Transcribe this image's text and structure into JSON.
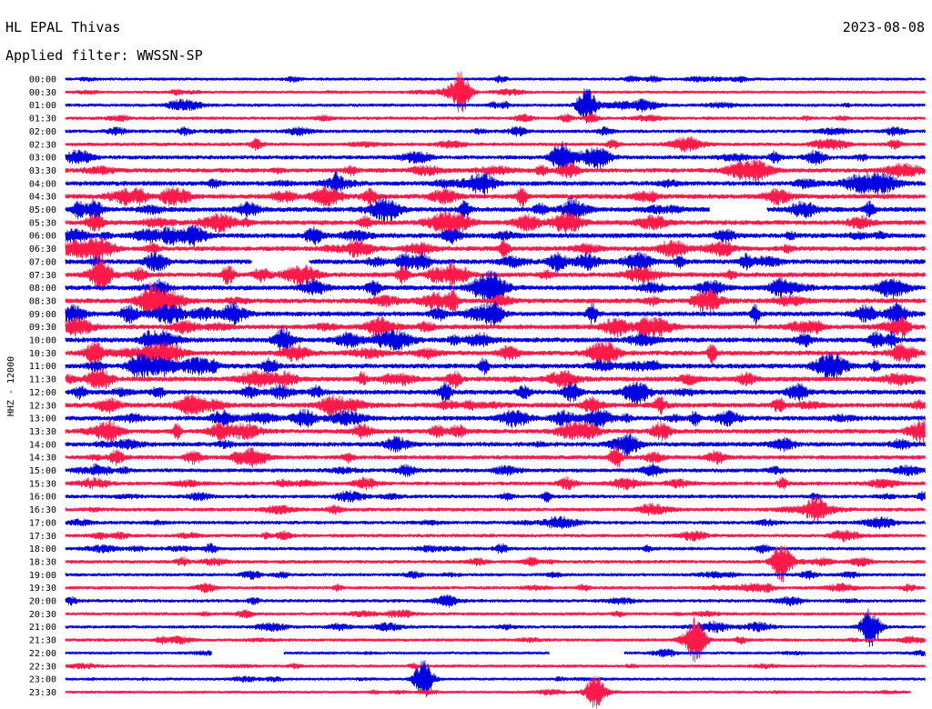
{
  "header": {
    "station": "HL EPAL Thivas",
    "date": "2023-08-08",
    "filter": "Applied filter: WWSSN-SP",
    "channel": "HHZ - 12000"
  },
  "chart_data": {
    "type": "line",
    "title": "HL EPAL Thivas",
    "xlabel": "",
    "ylabel": "HHZ - 12000",
    "x_unit": "minutes",
    "x_range": [
      0,
      30
    ],
    "rows": [
      "00:00",
      "00:30",
      "01:00",
      "01:30",
      "02:00",
      "02:30",
      "03:00",
      "03:30",
      "04:00",
      "04:30",
      "05:00",
      "05:30",
      "06:00",
      "06:30",
      "07:00",
      "07:30",
      "08:00",
      "08:30",
      "09:00",
      "09:30",
      "10:00",
      "10:30",
      "11:00",
      "11:30",
      "12:00",
      "12:30",
      "13:00",
      "13:30",
      "14:00",
      "14:30",
      "15:00",
      "15:30",
      "16:00",
      "16:30",
      "17:00",
      "17:30",
      "18:00",
      "18:30",
      "19:00",
      "19:30",
      "20:00",
      "20:30",
      "21:00",
      "21:30",
      "22:00",
      "22:30",
      "23:00",
      "23:30"
    ],
    "series_colors": [
      "#0000e0",
      "#ff1a4a"
    ],
    "color_pattern": "alternating per row, starting blue",
    "amplitude_levels": [
      0.35,
      0.3,
      0.45,
      0.45,
      0.5,
      0.55,
      0.7,
      0.85,
      0.95,
      1,
      1,
      1,
      1,
      1,
      1,
      1,
      1,
      1,
      1,
      1,
      1,
      1,
      1,
      1,
      1,
      1,
      0.95,
      0.9,
      0.9,
      0.8,
      0.7,
      0.65,
      0.6,
      0.6,
      0.55,
      0.5,
      0.5,
      0.5,
      0.45,
      0.45,
      0.45,
      0.4,
      0.4,
      0.4,
      0.3,
      0.3,
      0.25,
      0.25
    ],
    "gaps": [
      {
        "row": "07:00",
        "from_min": 6.5,
        "to_min": 8.5
      },
      {
        "row": "05:00",
        "from_min": 22.5,
        "to_min": 24.5
      },
      {
        "row": "22:00",
        "from_min": 5.1,
        "to_min": 7.6
      },
      {
        "row": "22:00",
        "from_min": 16.9,
        "to_min": 19.5
      },
      {
        "row": "23:30",
        "from_min": 29.5,
        "to_min": 30
      }
    ],
    "events": [
      {
        "row": "00:30",
        "minute": 13.8,
        "amp": 1.6
      },
      {
        "row": "01:00",
        "minute": 18.2,
        "amp": 1.3
      },
      {
        "row": "03:00",
        "minute": 17.3,
        "amp": 1.2
      },
      {
        "row": "18:30",
        "minute": 25.0,
        "amp": 1.5
      },
      {
        "row": "21:00",
        "minute": 28.1,
        "amp": 1.5
      },
      {
        "row": "21:30",
        "minute": 22.0,
        "amp": 1.8
      },
      {
        "row": "23:00",
        "minute": 12.5,
        "amp": 1.4
      },
      {
        "row": "23:30",
        "minute": 18.5,
        "amp": 1.3
      }
    ]
  }
}
